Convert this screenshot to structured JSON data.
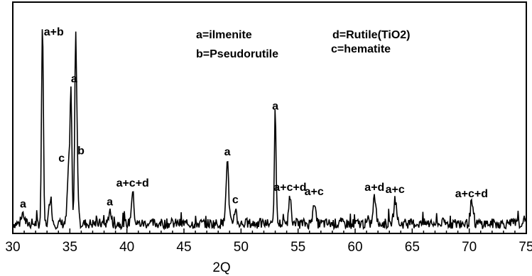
{
  "chart_data": {
    "type": "line",
    "xlabel": "2Q",
    "ylabel": "",
    "xlim": [
      30,
      75
    ],
    "ylim": [
      0,
      100
    ],
    "x_ticks": [
      "30",
      "35",
      "40",
      "45",
      "50",
      "55",
      "60",
      "65",
      "70",
      "75"
    ],
    "legend": [
      {
        "text": "a=ilmenite",
        "anchor": "top-center"
      },
      {
        "text": "d=Rutile(TiO2)",
        "anchor": "top-right"
      },
      {
        "text": "b=Pseudorutile",
        "anchor": "center"
      },
      {
        "text": "c=hematite",
        "anchor": "right"
      }
    ],
    "peaks": [
      {
        "x": 30.9,
        "y": 8,
        "label": "a"
      },
      {
        "x": 32.6,
        "y": 100,
        "label": "a+b"
      },
      {
        "x": 33.3,
        "y": 16,
        "label": ""
      },
      {
        "x": 34.9,
        "y": 30,
        "label": "c"
      },
      {
        "x": 35.1,
        "y": 61,
        "label": ""
      },
      {
        "x": 35.5,
        "y": 68,
        "label": "a"
      },
      {
        "x": 35.6,
        "y": 38,
        "label": "b"
      },
      {
        "x": 38.5,
        "y": 9,
        "label": "a"
      },
      {
        "x": 40.5,
        "y": 18,
        "label": "a+c+d"
      },
      {
        "x": 48.8,
        "y": 33,
        "label": "a"
      },
      {
        "x": 49.5,
        "y": 10,
        "label": "c"
      },
      {
        "x": 53.0,
        "y": 55,
        "label": "a"
      },
      {
        "x": 54.3,
        "y": 16,
        "label": "a+c+d"
      },
      {
        "x": 56.4,
        "y": 14,
        "label": "a+c"
      },
      {
        "x": 61.7,
        "y": 16,
        "label": "a+d"
      },
      {
        "x": 63.5,
        "y": 15,
        "label": "a+c"
      },
      {
        "x": 70.2,
        "y": 13,
        "label": "a+c+d"
      }
    ],
    "baseline": 3
  }
}
